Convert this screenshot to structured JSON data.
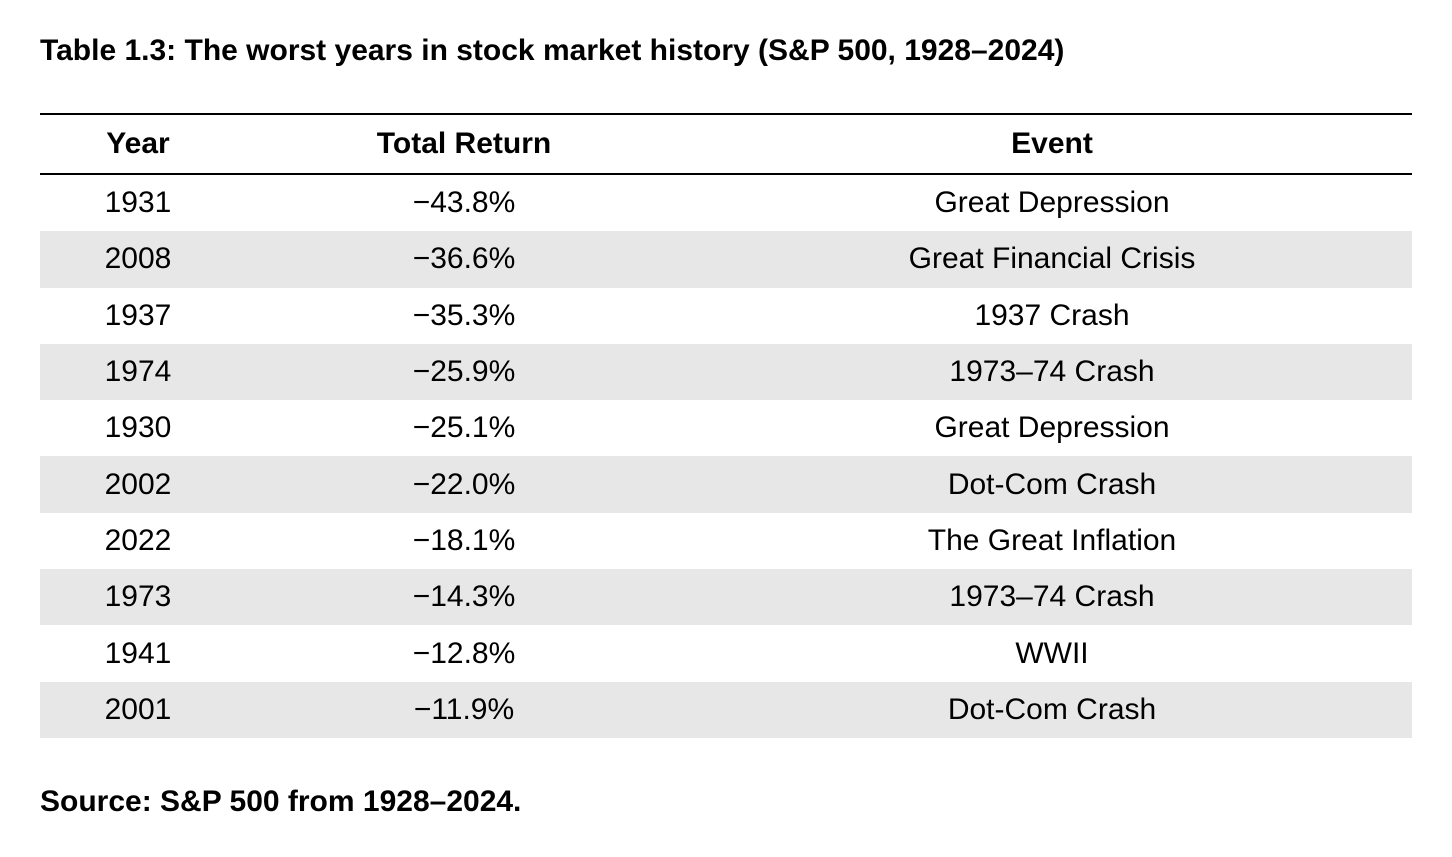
{
  "title": "Table 1.3: The worst years in stock market history (S&P 500, 1928–2024)",
  "headers": {
    "year": "Year",
    "total_return": "Total Return",
    "event": "Event"
  },
  "rows": [
    {
      "year": "1931",
      "total_return": "−43.8%",
      "event": "Great Depression"
    },
    {
      "year": "2008",
      "total_return": "−36.6%",
      "event": "Great Financial Crisis"
    },
    {
      "year": "1937",
      "total_return": "−35.3%",
      "event": "1937 Crash"
    },
    {
      "year": "1974",
      "total_return": "−25.9%",
      "event": "1973–74 Crash"
    },
    {
      "year": "1930",
      "total_return": "−25.1%",
      "event": "Great Depression"
    },
    {
      "year": "2002",
      "total_return": "−22.0%",
      "event": "Dot-Com Crash"
    },
    {
      "year": "2022",
      "total_return": "−18.1%",
      "event": "The Great Inflation"
    },
    {
      "year": "1973",
      "total_return": "−14.3%",
      "event": "1973–74 Crash"
    },
    {
      "year": "1941",
      "total_return": "−12.8%",
      "event": "WWII"
    },
    {
      "year": "2001",
      "total_return": "−11.9%",
      "event": "Dot-Com Crash"
    }
  ],
  "source": "Source: S&P 500 from 1928–2024.",
  "colors": {
    "stripe": "#e6e7e6",
    "rule": "#000000"
  }
}
